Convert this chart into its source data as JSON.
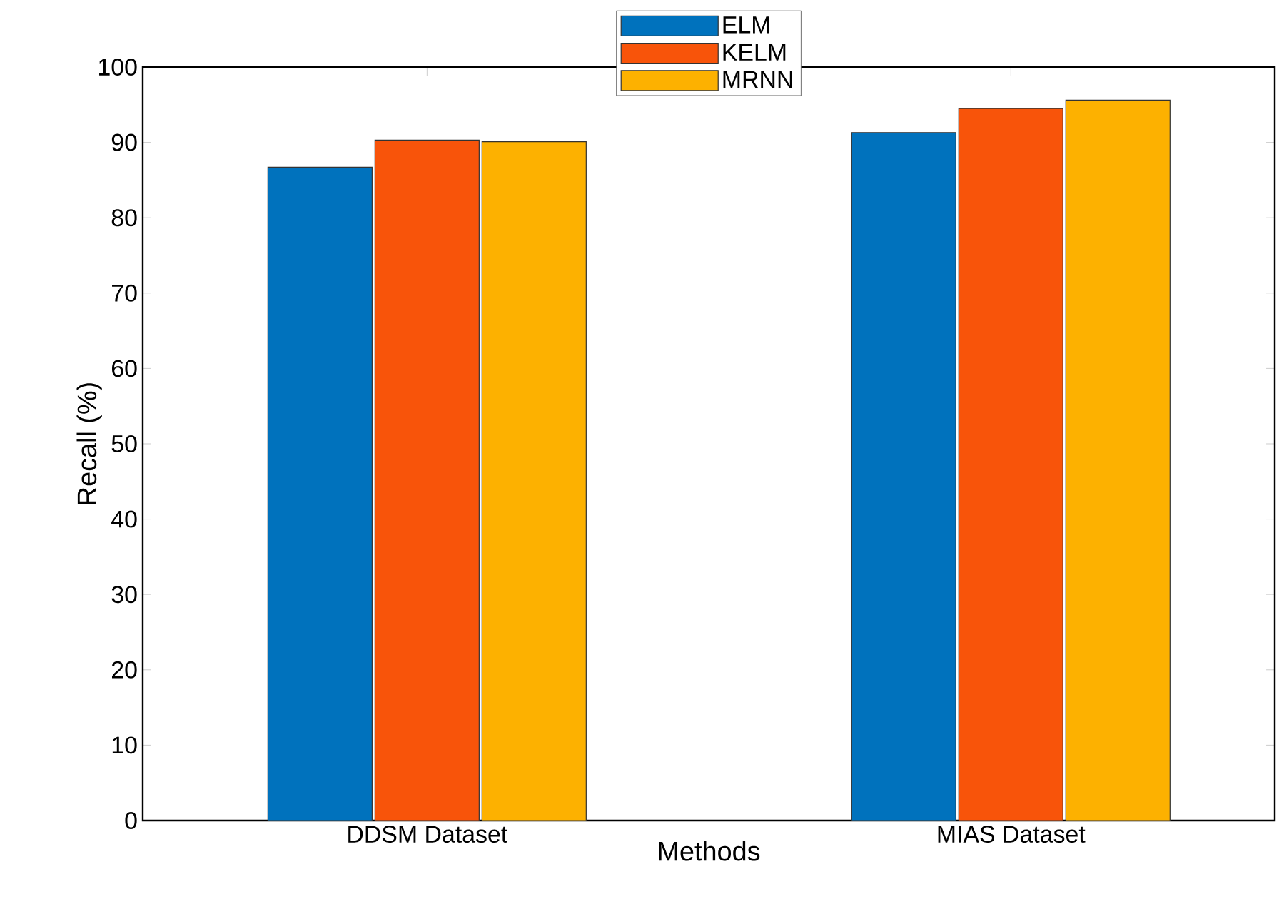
{
  "chart_data": {
    "type": "bar",
    "xlabel": "Methods",
    "ylabel": "Recall (%)",
    "categories": [
      "DDSM Dataset",
      "MIAS Dataset"
    ],
    "series": [
      {
        "name": "ELM",
        "color": "#0072bd",
        "values": [
          86.7,
          91.3
        ]
      },
      {
        "name": "KELM",
        "color": "#f8540a",
        "values": [
          90.3,
          94.5
        ]
      },
      {
        "name": "MRNN",
        "color": "#fdb100",
        "values": [
          90.1,
          95.6
        ]
      }
    ],
    "ylim": [
      0,
      100
    ],
    "yticks": [
      0,
      10,
      20,
      30,
      40,
      50,
      60,
      70,
      80,
      90,
      100
    ],
    "legend": "top"
  }
}
